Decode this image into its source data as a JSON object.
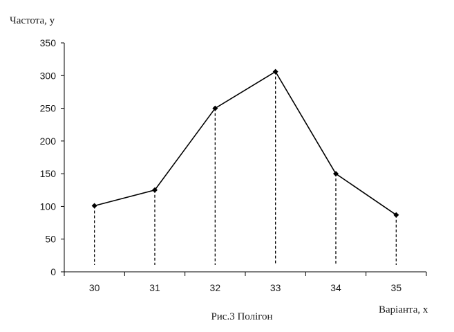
{
  "chart_data": {
    "type": "line",
    "title": "",
    "caption": "Рис.3 Полігон",
    "xlabel": "Варіанта, x",
    "ylabel": "Частота, y",
    "categories": [
      "30",
      "31",
      "32",
      "33",
      "34",
      "35"
    ],
    "series": [
      {
        "values": [
          101,
          125,
          250,
          306,
          150,
          87
        ]
      }
    ],
    "ylim": [
      0,
      350
    ],
    "yticks": [
      "0",
      "50",
      "100",
      "150",
      "200",
      "250",
      "300",
      "350"
    ],
    "grid": false,
    "legend": "none",
    "drop_lines": true,
    "marker": "diamond",
    "line_color": "#000000"
  }
}
